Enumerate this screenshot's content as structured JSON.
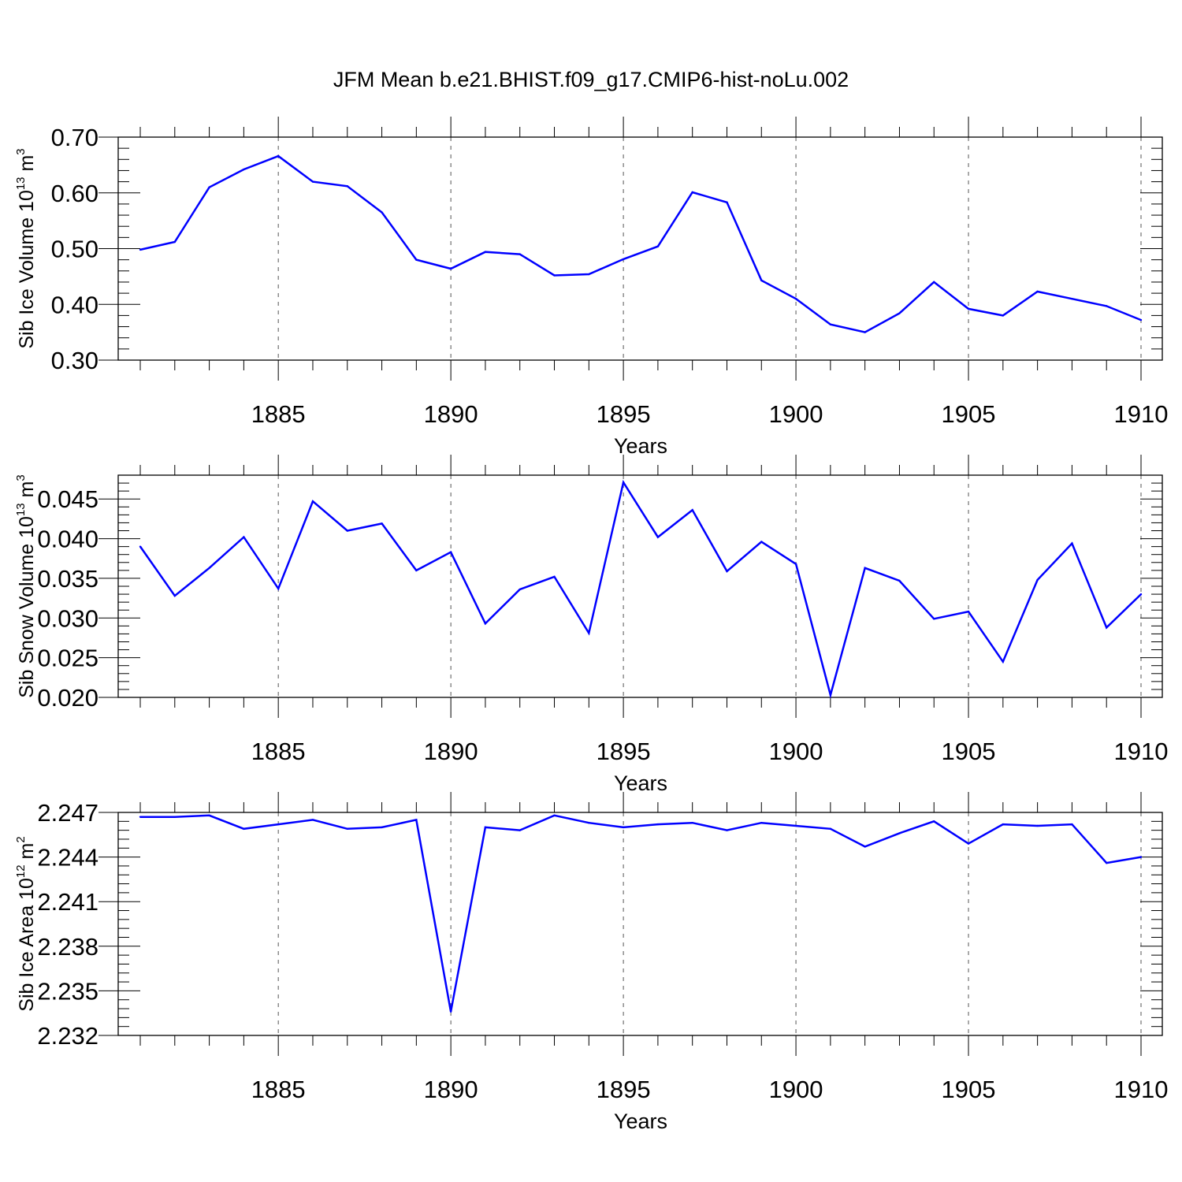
{
  "figure": {
    "title": "JFM Mean b.e21.BHIST.f09_g17.CMIP6-hist-noLu.002",
    "line_color": "#0000ff"
  },
  "chart_data": [
    {
      "type": "line",
      "ylabel": "Sib Ice Volume",
      "units": {
        "base": "10",
        "exp": "13",
        "unit": "m",
        "unit_exp": "3"
      },
      "xlabel": "Years",
      "xlim": [
        1881,
        1910
      ],
      "ylim": [
        0.3,
        0.7
      ],
      "x_ticks": [
        1885,
        1890,
        1895,
        1900,
        1905,
        1910
      ],
      "x_tick_labels": [
        "1885",
        "1890",
        "1895",
        "1900",
        "1905",
        "1910"
      ],
      "y_ticks": [
        0.3,
        0.4,
        0.5,
        0.6,
        0.7
      ],
      "y_tick_labels": [
        "0.30",
        "0.40",
        "0.50",
        "0.60",
        "0.70"
      ],
      "grid": "dashed vertical at major x ticks",
      "x": [
        1881,
        1882,
        1883,
        1884,
        1885,
        1886,
        1887,
        1888,
        1889,
        1890,
        1891,
        1892,
        1893,
        1894,
        1895,
        1896,
        1897,
        1898,
        1899,
        1900,
        1901,
        1902,
        1903,
        1904,
        1905,
        1906,
        1907,
        1908,
        1909,
        1910
      ],
      "values": [
        0.498,
        0.512,
        0.61,
        0.642,
        0.666,
        0.62,
        0.612,
        0.565,
        0.48,
        0.464,
        0.494,
        0.49,
        0.452,
        0.454,
        0.481,
        0.504,
        0.601,
        0.583,
        0.443,
        0.41,
        0.364,
        0.35,
        0.384,
        0.44,
        0.392,
        0.38,
        0.423,
        0.41,
        0.397,
        0.372
      ]
    },
    {
      "type": "line",
      "ylabel": "Sib Snow Volume",
      "units": {
        "base": "10",
        "exp": "13",
        "unit": "m",
        "unit_exp": "3"
      },
      "xlabel": "Years",
      "xlim": [
        1881,
        1910
      ],
      "ylim": [
        0.02,
        0.048
      ],
      "x_ticks": [
        1885,
        1890,
        1895,
        1900,
        1905,
        1910
      ],
      "x_tick_labels": [
        "1885",
        "1890",
        "1895",
        "1900",
        "1905",
        "1910"
      ],
      "y_ticks": [
        0.02,
        0.025,
        0.03,
        0.035,
        0.04,
        0.045
      ],
      "y_tick_labels": [
        "0.020",
        "0.025",
        "0.030",
        "0.035",
        "0.040",
        "0.045"
      ],
      "grid": "dashed vertical at major x ticks",
      "x": [
        1881,
        1882,
        1883,
        1884,
        1885,
        1886,
        1887,
        1888,
        1889,
        1890,
        1891,
        1892,
        1893,
        1894,
        1895,
        1896,
        1897,
        1898,
        1899,
        1900,
        1901,
        1902,
        1903,
        1904,
        1905,
        1906,
        1907,
        1908,
        1909,
        1910
      ],
      "values": [
        0.039,
        0.0328,
        0.0363,
        0.0402,
        0.0337,
        0.0447,
        0.041,
        0.0419,
        0.036,
        0.0383,
        0.0293,
        0.0336,
        0.0352,
        0.0281,
        0.0471,
        0.0402,
        0.0436,
        0.0359,
        0.0396,
        0.0368,
        0.0203,
        0.0363,
        0.0347,
        0.0299,
        0.0308,
        0.0245,
        0.0348,
        0.0394,
        0.0288,
        0.033
      ]
    },
    {
      "type": "line",
      "ylabel": "Sib Ice Area",
      "units": {
        "base": "10",
        "exp": "12",
        "unit": "m",
        "unit_exp": "2"
      },
      "xlabel": "Years",
      "xlim": [
        1881,
        1910
      ],
      "ylim": [
        2.232,
        2.247
      ],
      "x_ticks": [
        1885,
        1890,
        1895,
        1900,
        1905,
        1910
      ],
      "x_tick_labels": [
        "1885",
        "1890",
        "1895",
        "1900",
        "1905",
        "1910"
      ],
      "y_ticks": [
        2.232,
        2.235,
        2.238,
        2.241,
        2.244,
        2.247
      ],
      "y_tick_labels": [
        "2.232",
        "2.235",
        "2.238",
        "2.241",
        "2.244",
        "2.247"
      ],
      "grid": "dashed vertical at major x ticks",
      "x": [
        1881,
        1882,
        1883,
        1884,
        1885,
        1886,
        1887,
        1888,
        1889,
        1890,
        1891,
        1892,
        1893,
        1894,
        1895,
        1896,
        1897,
        1898,
        1899,
        1900,
        1901,
        1902,
        1903,
        1904,
        1905,
        1906,
        1907,
        1908,
        1909,
        1910
      ],
      "values": [
        2.2467,
        2.2467,
        2.2468,
        2.2459,
        2.2462,
        2.2465,
        2.2459,
        2.246,
        2.2465,
        2.2336,
        2.246,
        2.2458,
        2.2468,
        2.2463,
        2.246,
        2.2462,
        2.2463,
        2.2458,
        2.2463,
        2.2461,
        2.2459,
        2.2447,
        2.2456,
        2.2464,
        2.2449,
        2.2462,
        2.2461,
        2.2462,
        2.2436,
        2.244
      ]
    }
  ]
}
